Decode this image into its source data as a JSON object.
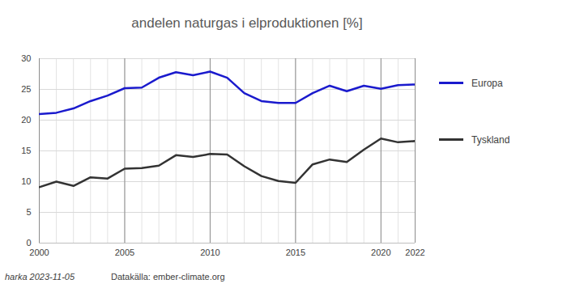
{
  "chart_data": {
    "type": "line",
    "title": "andelen naturgas i elproduktionen [%]",
    "annotations": [
      "harka 2023-11-05",
      "Datakälla: ember-climate.org"
    ],
    "x": [
      2000,
      2001,
      2002,
      2003,
      2004,
      2005,
      2006,
      2007,
      2008,
      2009,
      2010,
      2011,
      2012,
      2013,
      2014,
      2015,
      2016,
      2017,
      2018,
      2019,
      2020,
      2021,
      2022
    ],
    "series": [
      {
        "name": "Europa",
        "color": "#1a1acd",
        "values": [
          21.0,
          21.2,
          21.9,
          23.1,
          24.0,
          25.2,
          25.3,
          26.9,
          27.8,
          27.3,
          27.9,
          26.9,
          24.4,
          23.1,
          22.8,
          22.8,
          24.4,
          25.6,
          24.7,
          25.6,
          25.1,
          25.7,
          25.8
        ]
      },
      {
        "name": "Tyskland",
        "color": "#333333",
        "values": [
          9.1,
          10.0,
          9.3,
          10.7,
          10.5,
          12.1,
          12.2,
          12.6,
          14.3,
          14.0,
          14.5,
          14.4,
          12.5,
          10.9,
          10.1,
          9.8,
          12.8,
          13.6,
          13.2,
          15.2,
          17.0,
          16.4,
          16.6
        ]
      }
    ],
    "xlim": [
      2000,
      2022
    ],
    "xticks": [
      2000,
      2005,
      2010,
      2015,
      2020,
      2022
    ],
    "ylim": [
      0,
      30
    ],
    "yticks": [
      0,
      5,
      10,
      15,
      20,
      25,
      30
    ],
    "grid": true,
    "legend": "right"
  }
}
